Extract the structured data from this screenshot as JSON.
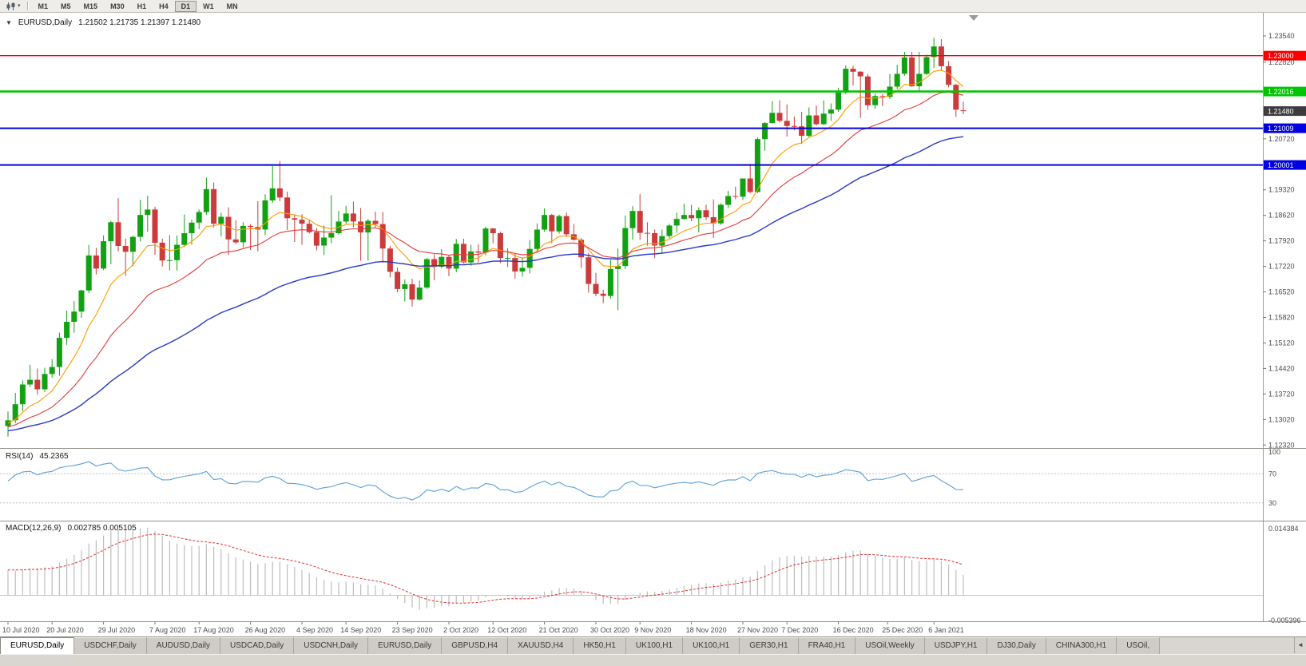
{
  "toolbar": {
    "periods": [
      "M1",
      "M5",
      "M15",
      "M30",
      "H1",
      "H4",
      "D1",
      "W1",
      "MN"
    ],
    "active_period": "D1"
  },
  "icons": {
    "dropdown_caret": "▾",
    "collapse": "▼",
    "tab_scroll_left": "◄",
    "chart_shift_marker": "triangle-marker"
  },
  "chart": {
    "title": "EURUSD,Daily",
    "ohlc": "1.21502 1.21735 1.21397 1.21480"
  },
  "current_price": {
    "label": "1.21480",
    "value": 1.2148
  },
  "levels": [
    {
      "price": 1.23,
      "label": "1.23000",
      "color": "#ff0000",
      "width": 1.4
    },
    {
      "price": 1.22016,
      "label": "1.22016",
      "color": "#00c400",
      "width": 2.6
    },
    {
      "price": 1.21009,
      "label": "1.21009",
      "color": "#0000e0",
      "width": 2
    },
    {
      "price": 1.20001,
      "label": "1.20001",
      "color": "#0000e0",
      "width": 2
    }
  ],
  "price_axis_labels": [
    "1.23540",
    "1.22820",
    "1.20720",
    "1.19320",
    "1.18620",
    "1.17920",
    "1.17220",
    "1.16520",
    "1.15820",
    "1.15120",
    "1.14420",
    "1.13720",
    "1.13020",
    "1.12320"
  ],
  "x_axis_labels": [
    {
      "text": "10 Jul 2020",
      "i": 0
    },
    {
      "text": "20 Jul 2020",
      "i": 6
    },
    {
      "text": "29 Jul 2020",
      "i": 13
    },
    {
      "text": "7 Aug 2020",
      "i": 20
    },
    {
      "text": "17 Aug 2020",
      "i": 26
    },
    {
      "text": "26 Aug 2020",
      "i": 33
    },
    {
      "text": "4 Sep 2020",
      "i": 40
    },
    {
      "text": "14 Sep 2020",
      "i": 46
    },
    {
      "text": "23 Sep 2020",
      "i": 53
    },
    {
      "text": "2 Oct 2020",
      "i": 60
    },
    {
      "text": "12 Oct 2020",
      "i": 66
    },
    {
      "text": "21 Oct 2020",
      "i": 73
    },
    {
      "text": "30 Oct 2020",
      "i": 80
    },
    {
      "text": "9 Nov 2020",
      "i": 86
    },
    {
      "text": "18 Nov 2020",
      "i": 93
    },
    {
      "text": "27 Nov 2020",
      "i": 100
    },
    {
      "text": "7 Dec 2020",
      "i": 106
    },
    {
      "text": "16 Dec 2020",
      "i": 113
    },
    {
      "text": "25 Dec 2020",
      "i": 119.7
    },
    {
      "text": "6 Jan 2021",
      "i": 126
    }
  ],
  "indicators": {
    "rsi": {
      "label": "RSI(14)",
      "value": "45.2365",
      "scale_labels": [
        100,
        70,
        30
      ],
      "dashed_levels": [
        70,
        30
      ]
    },
    "macd": {
      "label": "MACD(12,26,9)",
      "values": "0.002785 0.005105",
      "scale_labels": [
        "0.014384",
        "-0.005396"
      ]
    }
  },
  "colors": {
    "bull": "#12a112",
    "bear": "#cc3b3b",
    "rsi_line": "#5aa0dc",
    "macd_hist": "#bdbdbd",
    "macd_signal": "#e03030",
    "current_price_bg": "#3c3c3c",
    "axis_text": "#4a4a4a"
  },
  "tabs": {
    "active_index": 0,
    "items": [
      "EURUSD,Daily",
      "USDCHF,Daily",
      "AUDUSD,Daily",
      "USDCAD,Daily",
      "USDCNH,Daily",
      "EURUSD,Daily",
      "GBPUSD,H4",
      "XAUUSD,H4",
      "HK50,H1",
      "UK100,H1",
      "UK100,H1",
      "GER30,H1",
      "FRA40,H1",
      "USOil,Weekly",
      "USDJPY,H1",
      "DJ30,Daily",
      "CHINA300,H1",
      "USOil,"
    ]
  },
  "chart_data": {
    "type": "candlestick",
    "symbol": "EURUSD",
    "timeframe": "Daily",
    "first_candle_date": "2020-07-10",
    "last_candle_date": "2021-01-12",
    "visible_price_range": [
      1.1224,
      1.2418
    ],
    "horizontal_lines": [
      1.23,
      1.22016,
      1.21009,
      1.20001
    ],
    "current_price": 1.2148,
    "candles_ohlc": [
      [
        1.1284,
        1.1324,
        1.1255,
        1.13
      ],
      [
        1.13,
        1.1375,
        1.1292,
        1.1344
      ],
      [
        1.1344,
        1.1409,
        1.1325,
        1.1398
      ],
      [
        1.1398,
        1.1452,
        1.1392,
        1.1411
      ],
      [
        1.1411,
        1.1442,
        1.137,
        1.1385
      ],
      [
        1.1385,
        1.1444,
        1.1378,
        1.1427
      ],
      [
        1.1427,
        1.1468,
        1.1417,
        1.1446
      ],
      [
        1.1446,
        1.154,
        1.1422,
        1.1526
      ],
      [
        1.1526,
        1.1601,
        1.1507,
        1.157
      ],
      [
        1.157,
        1.1627,
        1.154,
        1.1598
      ],
      [
        1.1598,
        1.1658,
        1.1581,
        1.1656
      ],
      [
        1.1656,
        1.1781,
        1.1649,
        1.1752
      ],
      [
        1.1752,
        1.1773,
        1.17,
        1.1716
      ],
      [
        1.1716,
        1.1807,
        1.1712,
        1.1791
      ],
      [
        1.1791,
        1.1847,
        1.1728,
        1.1843
      ],
      [
        1.1843,
        1.1909,
        1.1763,
        1.1778
      ],
      [
        1.1778,
        1.1798,
        1.1696,
        1.1762
      ],
      [
        1.1762,
        1.1806,
        1.1723,
        1.1803
      ],
      [
        1.1803,
        1.1905,
        1.1791,
        1.1863
      ],
      [
        1.1863,
        1.1916,
        1.1817,
        1.1878
      ],
      [
        1.1878,
        1.1886,
        1.1754,
        1.1787
      ],
      [
        1.1787,
        1.1798,
        1.1722,
        1.1738
      ],
      [
        1.1738,
        1.1808,
        1.1711,
        1.1739
      ],
      [
        1.1739,
        1.1807,
        1.1711,
        1.1781
      ],
      [
        1.1781,
        1.1864,
        1.1775,
        1.1813
      ],
      [
        1.1813,
        1.185,
        1.1782,
        1.1842
      ],
      [
        1.1842,
        1.1878,
        1.1824,
        1.1871
      ],
      [
        1.1871,
        1.1966,
        1.1863,
        1.1934
      ],
      [
        1.1934,
        1.1952,
        1.1829,
        1.1839
      ],
      [
        1.1839,
        1.1869,
        1.1804,
        1.1858
      ],
      [
        1.1858,
        1.1884,
        1.1754,
        1.1796
      ],
      [
        1.1796,
        1.1848,
        1.1783,
        1.1788
      ],
      [
        1.1788,
        1.1843,
        1.1774,
        1.1833
      ],
      [
        1.1833,
        1.1838,
        1.1767,
        1.183
      ],
      [
        1.183,
        1.1901,
        1.1763,
        1.1823
      ],
      [
        1.1823,
        1.192,
        1.1808,
        1.1903
      ],
      [
        1.1903,
        1.1997,
        1.1896,
        1.1936
      ],
      [
        1.1936,
        1.2011,
        1.1901,
        1.1911
      ],
      [
        1.1911,
        1.1927,
        1.1822,
        1.1854
      ],
      [
        1.1854,
        1.1864,
        1.1789,
        1.185
      ],
      [
        1.185,
        1.1865,
        1.1781,
        1.1839
      ],
      [
        1.1839,
        1.1849,
        1.1812,
        1.1816
      ],
      [
        1.1816,
        1.1827,
        1.1766,
        1.1779
      ],
      [
        1.1779,
        1.1834,
        1.1753,
        1.1801
      ],
      [
        1.1801,
        1.1917,
        1.1786,
        1.1813
      ],
      [
        1.1813,
        1.1874,
        1.1809,
        1.1845
      ],
      [
        1.1845,
        1.1888,
        1.1839,
        1.1867
      ],
      [
        1.1867,
        1.19,
        1.1829,
        1.1845
      ],
      [
        1.1845,
        1.1882,
        1.1737,
        1.1815
      ],
      [
        1.1815,
        1.1852,
        1.1738,
        1.1847
      ],
      [
        1.1847,
        1.1872,
        1.1827,
        1.1838
      ],
      [
        1.1838,
        1.1871,
        1.1732,
        1.1771
      ],
      [
        1.1771,
        1.1778,
        1.1692,
        1.1707
      ],
      [
        1.1707,
        1.1719,
        1.1651,
        1.166
      ],
      [
        1.166,
        1.1686,
        1.1626,
        1.1673
      ],
      [
        1.1673,
        1.1688,
        1.1612,
        1.1631
      ],
      [
        1.1631,
        1.1683,
        1.1628,
        1.1664
      ],
      [
        1.1664,
        1.1745,
        1.166,
        1.1742
      ],
      [
        1.1742,
        1.1755,
        1.1684,
        1.1721
      ],
      [
        1.1721,
        1.1769,
        1.1717,
        1.1748
      ],
      [
        1.1748,
        1.1752,
        1.1695,
        1.1716
      ],
      [
        1.1716,
        1.1797,
        1.1706,
        1.1784
      ],
      [
        1.1784,
        1.1798,
        1.173,
        1.1733
      ],
      [
        1.1733,
        1.1781,
        1.1724,
        1.1763
      ],
      [
        1.1763,
        1.1782,
        1.1733,
        1.176
      ],
      [
        1.176,
        1.1831,
        1.1752,
        1.1826
      ],
      [
        1.1826,
        1.1827,
        1.1785,
        1.1813
      ],
      [
        1.1813,
        1.1817,
        1.1731,
        1.1745
      ],
      [
        1.1745,
        1.1772,
        1.172,
        1.1745
      ],
      [
        1.1745,
        1.1758,
        1.1688,
        1.1708
      ],
      [
        1.1708,
        1.1747,
        1.1694,
        1.1718
      ],
      [
        1.1718,
        1.1794,
        1.1703,
        1.177
      ],
      [
        1.177,
        1.184,
        1.176,
        1.1823
      ],
      [
        1.1823,
        1.1881,
        1.1817,
        1.1863
      ],
      [
        1.1863,
        1.1866,
        1.1786,
        1.1818
      ],
      [
        1.1818,
        1.1864,
        1.1812,
        1.186
      ],
      [
        1.186,
        1.187,
        1.1803,
        1.181
      ],
      [
        1.181,
        1.1838,
        1.1793,
        1.1795
      ],
      [
        1.1795,
        1.18,
        1.1718,
        1.1747
      ],
      [
        1.1747,
        1.1759,
        1.165,
        1.1674
      ],
      [
        1.1674,
        1.1704,
        1.164,
        1.1647
      ],
      [
        1.1647,
        1.1658,
        1.1621,
        1.1641
      ],
      [
        1.1641,
        1.174,
        1.1633,
        1.1715
      ],
      [
        1.1715,
        1.1771,
        1.1602,
        1.1723
      ],
      [
        1.1723,
        1.1861,
        1.1715,
        1.1827
      ],
      [
        1.1827,
        1.1887,
        1.1795,
        1.1874
      ],
      [
        1.1874,
        1.192,
        1.1795,
        1.1814
      ],
      [
        1.1814,
        1.1843,
        1.1779,
        1.1813
      ],
      [
        1.1813,
        1.1823,
        1.1745,
        1.1779
      ],
      [
        1.1779,
        1.1823,
        1.1757,
        1.1805
      ],
      [
        1.1805,
        1.1839,
        1.1799,
        1.1834
      ],
      [
        1.1834,
        1.1869,
        1.1814,
        1.1852
      ],
      [
        1.1852,
        1.1894,
        1.185,
        1.1863
      ],
      [
        1.1863,
        1.1891,
        1.1846,
        1.1854
      ],
      [
        1.1854,
        1.1884,
        1.1815,
        1.1876
      ],
      [
        1.1876,
        1.1891,
        1.1849,
        1.1857
      ],
      [
        1.1857,
        1.1906,
        1.18,
        1.184
      ],
      [
        1.184,
        1.1895,
        1.1836,
        1.1891
      ],
      [
        1.1891,
        1.1929,
        1.1882,
        1.1915
      ],
      [
        1.1915,
        1.1941,
        1.1906,
        1.1913
      ],
      [
        1.1913,
        1.1963,
        1.1904,
        1.1963
      ],
      [
        1.1963,
        1.2003,
        1.1923,
        1.1926
      ],
      [
        1.1926,
        1.2076,
        1.1923,
        1.2071
      ],
      [
        1.2071,
        1.2118,
        1.2039,
        1.2115
      ],
      [
        1.2115,
        1.2175,
        1.2114,
        1.2143
      ],
      [
        1.2143,
        1.2177,
        1.2117,
        1.2121
      ],
      [
        1.2121,
        1.2166,
        1.2078,
        1.2107
      ],
      [
        1.2107,
        1.2133,
        1.2095,
        1.2106
      ],
      [
        1.2106,
        1.2146,
        1.2058,
        1.208
      ],
      [
        1.208,
        1.2158,
        1.2075,
        1.2136
      ],
      [
        1.2136,
        1.2163,
        1.2108,
        1.2112
      ],
      [
        1.2112,
        1.2177,
        1.211,
        1.2141
      ],
      [
        1.2141,
        1.2169,
        1.2121,
        1.2152
      ],
      [
        1.2152,
        1.2212,
        1.2146,
        1.2199
      ],
      [
        1.2199,
        1.2273,
        1.2195,
        1.2264
      ],
      [
        1.2264,
        1.2272,
        1.2218,
        1.2256
      ],
      [
        1.2256,
        1.2257,
        1.2129,
        1.2243
      ],
      [
        1.2243,
        1.225,
        1.2151,
        1.2164
      ],
      [
        1.2164,
        1.2196,
        1.2154,
        1.2189
      ],
      [
        1.2189,
        1.2195,
        1.2162,
        1.2187
      ],
      [
        1.2187,
        1.225,
        1.2181,
        1.2215
      ],
      [
        1.2215,
        1.2275,
        1.2208,
        1.225
      ],
      [
        1.225,
        1.231,
        1.2245,
        1.2295
      ],
      [
        1.2295,
        1.231,
        1.2214,
        1.2216
      ],
      [
        1.2216,
        1.231,
        1.22,
        1.225
      ],
      [
        1.225,
        1.2303,
        1.2247,
        1.2296
      ],
      [
        1.2296,
        1.2349,
        1.2266,
        1.2325
      ],
      [
        1.2325,
        1.2345,
        1.2258,
        1.2271
      ],
      [
        1.2271,
        1.2285,
        1.2213,
        1.222
      ],
      [
        1.222,
        1.2223,
        1.2132,
        1.2152
      ],
      [
        1.21502,
        1.21735,
        1.21397,
        1.2148
      ]
    ],
    "overlays": [
      {
        "name": "ma-fast",
        "type": "ema",
        "period": 9,
        "color": "#ff9c00",
        "width": 1.1,
        "seed": 1.129
      },
      {
        "name": "ma-mid",
        "type": "ema",
        "period": 21,
        "color": "#e53935",
        "width": 1.1,
        "seed": 1.128
      },
      {
        "name": "ma-slow",
        "type": "ema",
        "period": 50,
        "color": "#2738c8",
        "width": 1.4,
        "seed": 1.127
      }
    ],
    "sub_charts": [
      {
        "name": "RSI",
        "period": 14,
        "current_value": 45.2365,
        "levels": [
          70,
          30
        ],
        "value_range": [
          10,
          100
        ]
      },
      {
        "name": "MACD",
        "fast": 12,
        "slow": 26,
        "signal": 9,
        "macd_value": 0.002785,
        "signal_value": 0.005105,
        "scale_max": 0.014384,
        "scale_min": -0.005396
      }
    ]
  }
}
